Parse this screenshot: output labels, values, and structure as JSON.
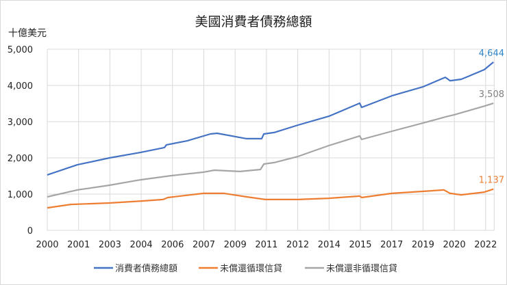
{
  "chart_data": {
    "type": "line",
    "title": "美國消費者債務總額",
    "ylabel": "十億美元",
    "xlabel": "",
    "ylim": [
      0,
      5000
    ],
    "yticks": [
      "0",
      "1,000",
      "2,000",
      "3,000",
      "4,000",
      "5,000"
    ],
    "ytick_values": [
      0,
      1000,
      2000,
      3000,
      4000,
      5000
    ],
    "xticks": [
      "2000",
      "2001",
      "2003",
      "2004",
      "2006",
      "2007",
      "2009",
      "2011",
      "2012",
      "2014",
      "2015",
      "2017",
      "2019",
      "2020",
      "2022"
    ],
    "xlim": [
      2000.0,
      2022.6
    ],
    "grid": true,
    "legend_position": "bottom",
    "series": [
      {
        "name": "消費者債務總額",
        "color": "#4472C4",
        "label_color": "#2E86C8",
        "end_label": "4,644",
        "points": [
          [
            2000.0,
            1530
          ],
          [
            2001.52,
            1810
          ],
          [
            2003.15,
            2000
          ],
          [
            2004.71,
            2150
          ],
          [
            2005.92,
            2285
          ],
          [
            2006.03,
            2360
          ],
          [
            2007.07,
            2470
          ],
          [
            2008.25,
            2660
          ],
          [
            2008.59,
            2680
          ],
          [
            2010.08,
            2530
          ],
          [
            2010.84,
            2530
          ],
          [
            2010.95,
            2660
          ],
          [
            2011.47,
            2700
          ],
          [
            2012.68,
            2905
          ],
          [
            2014.24,
            3150
          ],
          [
            2015.8,
            3510
          ],
          [
            2015.9,
            3395
          ],
          [
            2017.43,
            3715
          ],
          [
            2018.99,
            3960
          ],
          [
            2020.13,
            4225
          ],
          [
            2020.37,
            4130
          ],
          [
            2020.93,
            4170
          ],
          [
            2021.27,
            4245
          ],
          [
            2022.1,
            4435
          ],
          [
            2022.56,
            4644
          ]
        ]
      },
      {
        "name": "未償還循環信貸",
        "color": "#ED7D31",
        "label_color": "#ED7D31",
        "end_label": "1,137",
        "points": [
          [
            2000.0,
            620
          ],
          [
            2001.18,
            715
          ],
          [
            2003.15,
            755
          ],
          [
            2004.78,
            810
          ],
          [
            2005.86,
            850
          ],
          [
            2006.1,
            905
          ],
          [
            2007.9,
            1020
          ],
          [
            2008.94,
            1020
          ],
          [
            2010.08,
            925
          ],
          [
            2011.02,
            850
          ],
          [
            2012.68,
            850
          ],
          [
            2014.24,
            885
          ],
          [
            2015.8,
            945
          ],
          [
            2015.9,
            905
          ],
          [
            2017.43,
            1020
          ],
          [
            2018.99,
            1075
          ],
          [
            2020.06,
            1115
          ],
          [
            2020.37,
            1020
          ],
          [
            2020.93,
            980
          ],
          [
            2022.1,
            1055
          ],
          [
            2022.56,
            1137
          ]
        ]
      },
      {
        "name": "未償還非循環信貸",
        "color": "#A5A5A5",
        "label_color": "#7F7F7F",
        "end_label": "3,508",
        "points": [
          [
            2000.0,
            925
          ],
          [
            2001.52,
            1115
          ],
          [
            2003.15,
            1245
          ],
          [
            2004.71,
            1395
          ],
          [
            2006.27,
            1510
          ],
          [
            2007.9,
            1605
          ],
          [
            2008.45,
            1660
          ],
          [
            2009.74,
            1625
          ],
          [
            2010.78,
            1680
          ],
          [
            2010.95,
            1830
          ],
          [
            2011.47,
            1870
          ],
          [
            2012.68,
            2040
          ],
          [
            2014.24,
            2340
          ],
          [
            2015.8,
            2605
          ],
          [
            2015.9,
            2510
          ],
          [
            2017.43,
            2735
          ],
          [
            2018.99,
            2960
          ],
          [
            2020.13,
            3130
          ],
          [
            2020.58,
            3190
          ],
          [
            2022.14,
            3435
          ],
          [
            2022.56,
            3508
          ]
        ]
      }
    ]
  }
}
